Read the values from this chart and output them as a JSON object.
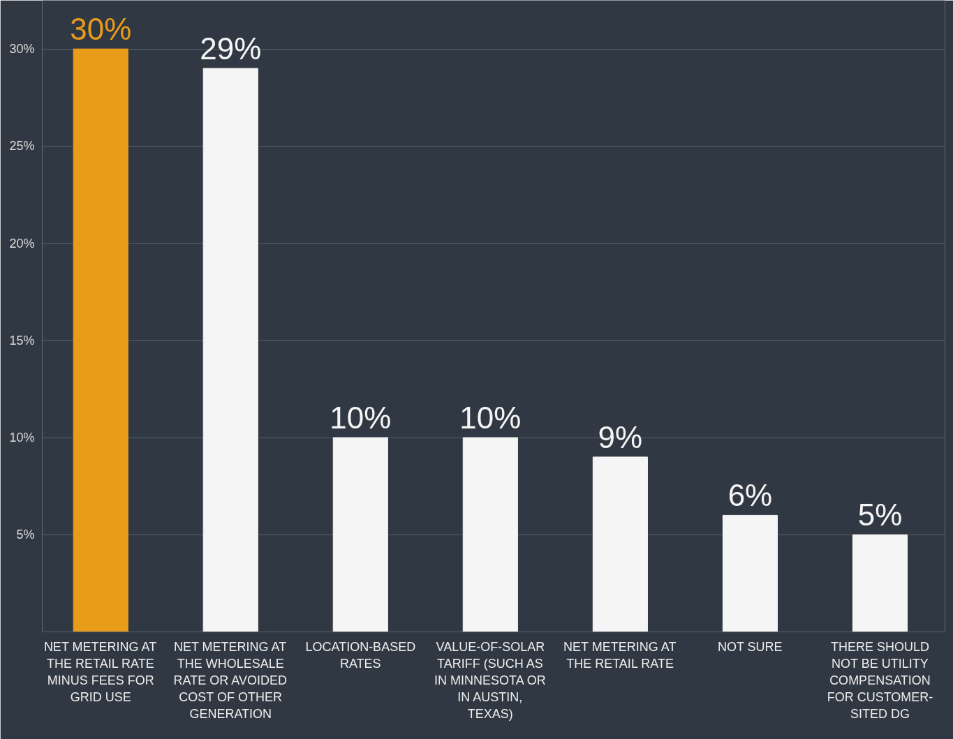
{
  "chart_data": {
    "type": "bar",
    "categories": [
      "NET METERING AT THE RETAIL RATE MINUS FEES FOR GRID USE",
      "NET METERING AT THE WHOLESALE RATE OR AVOIDED COST OF OTHER GENERATION",
      "LOCATION-BASED RATES",
      "VALUE-OF-SOLAR TARIFF (SUCH AS IN MINNESOTA OR IN AUSTIN, TEXAS)",
      "NET METERING AT THE RETAIL RATE",
      "NOT SURE",
      "THERE SHOULD NOT BE UTILITY COMPENSATION FOR CUSTOMER-SITED DG"
    ],
    "values": [
      30,
      29,
      10,
      10,
      9,
      6,
      5
    ],
    "colors": [
      "#e89c1a",
      "#f5f5f5",
      "#f5f5f5",
      "#f5f5f5",
      "#f5f5f5",
      "#f5f5f5",
      "#f5f5f5"
    ],
    "ylim": [
      0,
      32.5
    ],
    "yticks": [
      {
        "value": 5,
        "label": "5%"
      },
      {
        "value": 10,
        "label": "10%"
      },
      {
        "value": 15,
        "label": "15%"
      },
      {
        "value": 20,
        "label": "20%"
      },
      {
        "value": 25,
        "label": "25%"
      },
      {
        "value": 30,
        "label": "30%"
      }
    ],
    "value_labels": [
      "30%",
      "29%",
      "10%",
      "10%",
      "9%",
      "6%",
      "5%"
    ],
    "grid": "y"
  }
}
